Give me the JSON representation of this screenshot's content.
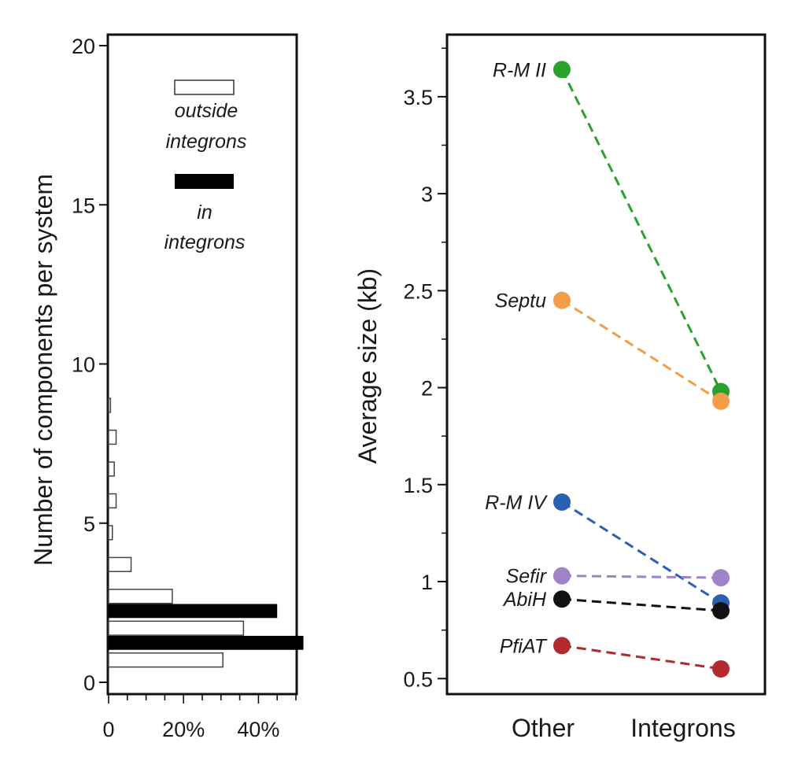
{
  "colors": {
    "outside": "#ffffff",
    "inside": "#000000",
    "green": "#2ca02c",
    "orange": "#f39c4a",
    "blue": "#2a5fb3",
    "purple": "#a082c8",
    "black": "#111111",
    "red": "#b22a2e"
  },
  "chart_data": [
    {
      "type": "bar",
      "orientation": "horizontal",
      "ylabel": "Number of components per system",
      "xlabel": "",
      "ylim": [
        0,
        20
      ],
      "xlim": [
        0,
        50
      ],
      "y_ticks": [
        "0",
        "5",
        "10",
        "15",
        "20"
      ],
      "x_ticks": [
        "0",
        "20%",
        "40%"
      ],
      "legend": {
        "placement": "top-right",
        "entries": [
          {
            "key": "outside",
            "line1": "outside",
            "line2": "integrons"
          },
          {
            "key": "inside",
            "line1": "in",
            "line2": "integrons"
          }
        ]
      },
      "series": [
        {
          "name": "outside integrons",
          "key": "outside",
          "components": [
            1,
            2,
            3,
            4,
            5,
            6,
            7,
            8,
            9
          ],
          "values": [
            30.5,
            36,
            17,
            6,
            1,
            2,
            1.5,
            2,
            0.5
          ]
        },
        {
          "name": "in integrons",
          "key": "inside",
          "components": [
            1,
            2
          ],
          "values": [
            52,
            45
          ]
        }
      ]
    },
    {
      "type": "line",
      "title": "",
      "ylabel": "Average size (kb)",
      "xlabel": "",
      "categories": [
        "Other",
        "Integrons"
      ],
      "ylim": [
        0.42,
        3.82
      ],
      "y_ticks": [
        "0.5",
        "1",
        "1.5",
        "2",
        "2.5",
        "3",
        "3.5"
      ],
      "series": [
        {
          "name": "R-M II",
          "color_key": "green",
          "values": [
            3.64,
            1.98
          ]
        },
        {
          "name": "Septu",
          "color_key": "orange",
          "values": [
            2.45,
            1.93
          ]
        },
        {
          "name": "R-M IV",
          "color_key": "blue",
          "values": [
            1.41,
            0.89
          ]
        },
        {
          "name": "Sefir",
          "color_key": "purple",
          "values": [
            1.03,
            1.02
          ]
        },
        {
          "name": "AbiH",
          "color_key": "black",
          "values": [
            0.91,
            0.85
          ]
        },
        {
          "name": "PfiAT",
          "color_key": "red",
          "values": [
            0.67,
            0.55
          ]
        }
      ]
    }
  ]
}
